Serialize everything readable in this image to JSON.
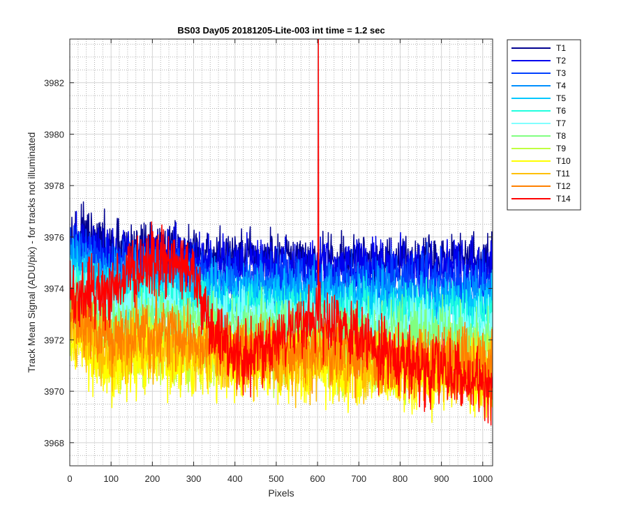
{
  "chart_data": {
    "type": "line",
    "title": "BS03 Day05 20181205-Lite-003 int time = 1.2 sec",
    "xlabel": "Pixels",
    "ylabel": "Track Mean Signal (ADU/pix) - for tracks not illuminated",
    "xlim": [
      0,
      1024
    ],
    "ylim": [
      3967.1,
      3983.7
    ],
    "x_ticks": [
      0,
      100,
      200,
      300,
      400,
      500,
      600,
      700,
      800,
      900,
      1000
    ],
    "y_ticks": [
      3968,
      3970,
      3972,
      3974,
      3976,
      3978,
      3980,
      3982
    ],
    "x_tick_labels": [
      "0",
      "100",
      "200",
      "300",
      "400",
      "500",
      "600",
      "700",
      "800",
      "900",
      "1000"
    ],
    "y_tick_labels": [
      "3968",
      "3970",
      "3972",
      "3974",
      "3976",
      "3978",
      "3980",
      "3982"
    ],
    "grid": true,
    "minor_grid": true,
    "legend_position": "outside-top-right",
    "series": [
      {
        "name": "T1",
        "color": "#00008f",
        "knots": [
          [
            0,
            3976.2
          ],
          [
            100,
            3975.5
          ],
          [
            200,
            3975.6
          ],
          [
            300,
            3975.3
          ],
          [
            400,
            3975.2
          ],
          [
            600,
            3975.0
          ],
          [
            800,
            3975.1
          ],
          [
            1024,
            3975.1
          ]
        ],
        "noise": 0.75
      },
      {
        "name": "T2",
        "color": "#0000ee",
        "knots": [
          [
            0,
            3975.9
          ],
          [
            100,
            3975.2
          ],
          [
            200,
            3975.3
          ],
          [
            300,
            3975.0
          ],
          [
            400,
            3974.9
          ],
          [
            600,
            3974.8
          ],
          [
            800,
            3974.8
          ],
          [
            1024,
            3974.8
          ]
        ],
        "noise": 0.75
      },
      {
        "name": "T3",
        "color": "#0040ff",
        "knots": [
          [
            0,
            3975.5
          ],
          [
            100,
            3974.8
          ],
          [
            200,
            3974.9
          ],
          [
            300,
            3974.6
          ],
          [
            400,
            3974.4
          ],
          [
            600,
            3974.3
          ],
          [
            800,
            3974.3
          ],
          [
            1024,
            3974.2
          ]
        ],
        "noise": 0.75
      },
      {
        "name": "T4",
        "color": "#0090ff",
        "knots": [
          [
            0,
            3975.0
          ],
          [
            100,
            3974.4
          ],
          [
            200,
            3974.5
          ],
          [
            300,
            3974.1
          ],
          [
            400,
            3974.0
          ],
          [
            600,
            3973.9
          ],
          [
            800,
            3973.8
          ],
          [
            1024,
            3973.7
          ]
        ],
        "noise": 0.75
      },
      {
        "name": "T5",
        "color": "#00c8ff",
        "knots": [
          [
            0,
            3974.6
          ],
          [
            100,
            3974.0
          ],
          [
            200,
            3974.1
          ],
          [
            300,
            3973.7
          ],
          [
            400,
            3973.6
          ],
          [
            600,
            3973.5
          ],
          [
            800,
            3973.4
          ],
          [
            1024,
            3973.3
          ]
        ],
        "noise": 0.75
      },
      {
        "name": "T6",
        "color": "#20ffdf",
        "knots": [
          [
            0,
            3974.2
          ],
          [
            100,
            3973.6
          ],
          [
            200,
            3973.7
          ],
          [
            300,
            3973.3
          ],
          [
            400,
            3973.2
          ],
          [
            600,
            3973.1
          ],
          [
            800,
            3973.0
          ],
          [
            1024,
            3972.9
          ]
        ],
        "noise": 0.75
      },
      {
        "name": "T7",
        "color": "#80ffff",
        "knots": [
          [
            0,
            3973.8
          ],
          [
            100,
            3973.2
          ],
          [
            200,
            3973.3
          ],
          [
            300,
            3972.9
          ],
          [
            400,
            3972.8
          ],
          [
            600,
            3972.7
          ],
          [
            800,
            3972.6
          ],
          [
            1024,
            3972.5
          ]
        ],
        "noise": 0.8
      },
      {
        "name": "T8",
        "color": "#80ff80",
        "knots": [
          [
            0,
            3973.4
          ],
          [
            100,
            3972.6
          ],
          [
            200,
            3972.8
          ],
          [
            300,
            3972.6
          ],
          [
            400,
            3972.4
          ],
          [
            600,
            3972.3
          ],
          [
            800,
            3972.2
          ],
          [
            1024,
            3972.0
          ]
        ],
        "noise": 0.85
      },
      {
        "name": "T9",
        "color": "#c0ff40",
        "knots": [
          [
            0,
            3972.8
          ],
          [
            100,
            3971.4
          ],
          [
            200,
            3971.8
          ],
          [
            300,
            3971.6
          ],
          [
            400,
            3971.5
          ],
          [
            600,
            3971.4
          ],
          [
            800,
            3971.2
          ],
          [
            1024,
            3971.0
          ]
        ],
        "noise": 0.95
      },
      {
        "name": "T10",
        "color": "#ffff00",
        "knots": [
          [
            0,
            3972.4
          ],
          [
            100,
            3970.9
          ],
          [
            200,
            3971.3
          ],
          [
            300,
            3971.2
          ],
          [
            400,
            3971.0
          ],
          [
            600,
            3970.9
          ],
          [
            800,
            3970.7
          ],
          [
            1024,
            3970.5
          ]
        ],
        "noise": 1.0
      },
      {
        "name": "T11",
        "color": "#ffbf00",
        "knots": [
          [
            0,
            3972.6
          ],
          [
            100,
            3971.4
          ],
          [
            200,
            3971.8
          ],
          [
            300,
            3971.5
          ],
          [
            400,
            3971.3
          ],
          [
            600,
            3971.2
          ],
          [
            800,
            3971.0
          ],
          [
            1024,
            3970.8
          ]
        ],
        "noise": 0.95
      },
      {
        "name": "T12",
        "color": "#ff8000",
        "knots": [
          [
            0,
            3973.0
          ],
          [
            100,
            3972.0
          ],
          [
            200,
            3972.4
          ],
          [
            300,
            3972.0
          ],
          [
            400,
            3971.7
          ],
          [
            600,
            3971.5
          ],
          [
            800,
            3971.3
          ],
          [
            1024,
            3971.1
          ]
        ],
        "noise": 0.9
      },
      {
        "name": "T14",
        "color": "#ff0000",
        "knots": [
          [
            0,
            3973.8
          ],
          [
            100,
            3973.9
          ],
          [
            150,
            3974.6
          ],
          [
            230,
            3975.2
          ],
          [
            300,
            3974.6
          ],
          [
            340,
            3972.6
          ],
          [
            420,
            3971.2
          ],
          [
            600,
            3972.8
          ],
          [
            700,
            3972.2
          ],
          [
            800,
            3971.0
          ],
          [
            900,
            3970.8
          ],
          [
            1024,
            3970.2
          ]
        ],
        "noise": 0.95,
        "spike": {
          "x": 602,
          "y": 3983.7
        }
      }
    ]
  }
}
